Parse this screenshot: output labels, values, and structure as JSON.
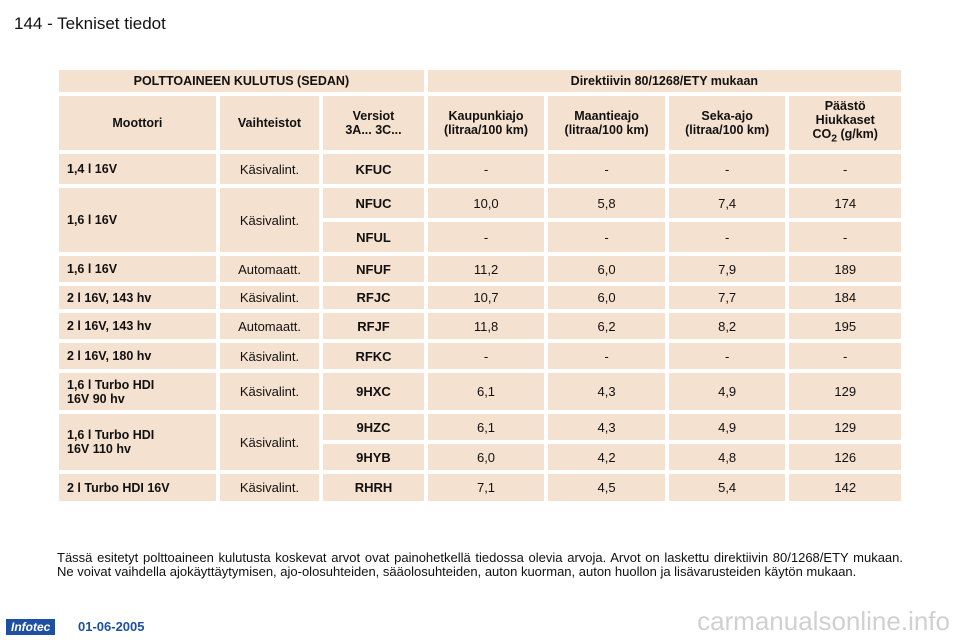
{
  "page": {
    "title": "144 - Tekniset tiedot"
  },
  "table": {
    "header_left": "POLTTOAINEEN KULUTUS (SEDAN)",
    "header_right": "Direktiivin 80/1268/ETY mukaan",
    "col_motor": "Moottori",
    "col_gearbox": "Vaihteistot",
    "col_version_1": "Versiot",
    "col_version_2": "3A... 3C...",
    "col_city_1": "Kaupunkiajo",
    "col_city_2": "(litraa/100 km)",
    "col_highway_1": "Maantieajo",
    "col_highway_2": "(litraa/100 km)",
    "col_mixed_1": "Seka-ajo",
    "col_mixed_2": "(litraa/100 km)",
    "col_co2_1": "Päästö",
    "col_co2_2": "Hiukkaset",
    "col_co2_3a": "CO",
    "col_co2_3sub": "2",
    "col_co2_3b": " (g/km)",
    "rows": [
      {
        "motor": "1,4 l 16V",
        "gearbox": "Käsivalint.",
        "version": "KFUC",
        "city": "-",
        "highway": "-",
        "mixed": "-",
        "co2": "-"
      },
      {
        "motor": "1,6 l 16V",
        "gearbox": "Käsivalint.",
        "version": "NFUC",
        "city": "10,0",
        "highway": "5,8",
        "mixed": "7,4",
        "co2": "174"
      },
      {
        "version": "NFUL",
        "city": "-",
        "highway": "-",
        "mixed": "-",
        "co2": "-"
      },
      {
        "motor": "1,6 l 16V",
        "gearbox": "Automaatt.",
        "version": "NFUF",
        "city": "11,2",
        "highway": "6,0",
        "mixed": "7,9",
        "co2": "189"
      },
      {
        "motor": "2 l 16V, 143 hv",
        "gearbox": "Käsivalint.",
        "version": "RFJC",
        "city": "10,7",
        "highway": "6,0",
        "mixed": "7,7",
        "co2": "184"
      },
      {
        "motor": "2 l 16V, 143 hv",
        "gearbox": "Automaatt.",
        "version": "RFJF",
        "city": "11,8",
        "highway": "6,2",
        "mixed": "8,2",
        "co2": "195"
      },
      {
        "motor": "2 l 16V, 180 hv",
        "gearbox": "Käsivalint.",
        "version": "RFKC",
        "city": "-",
        "highway": "-",
        "mixed": "-",
        "co2": "-"
      },
      {
        "motor_1": "1,6 l Turbo HDI",
        "motor_2": "16V 90 hv",
        "gearbox": "Käsivalint.",
        "version": "9HXC",
        "city": "6,1",
        "highway": "4,3",
        "mixed": "4,9",
        "co2": "129"
      },
      {
        "motor_1": "1,6 l Turbo HDI",
        "motor_2": "16V 110 hv",
        "gearbox": "Käsivalint.",
        "version": "9HZC",
        "city": "6,1",
        "highway": "4,3",
        "mixed": "4,9",
        "co2": "129"
      },
      {
        "version": "9HYB",
        "city": "6,0",
        "highway": "4,2",
        "mixed": "4,8",
        "co2": "126"
      },
      {
        "motor": "2 l Turbo HDI 16V",
        "gearbox": "Käsivalint.",
        "version": "RHRH",
        "city": "7,1",
        "highway": "4,5",
        "mixed": "5,4",
        "co2": "142"
      }
    ]
  },
  "footnote": "Tässä esitetyt polttoaineen kulutusta koskevat arvot ovat painohetkellä tiedossa olevia arvoja. Arvot on laskettu direktiivin 80/1268/ETY mukaan. Ne voivat vaihdella ajokäyttäytymisen, ajo-olosuhteiden, sääolosuhteiden, auton kuorman, auton huollon ja lisävarusteiden käytön mukaan.",
  "footer": {
    "logo": "Infotec",
    "date": "01-06-2005"
  },
  "watermark": "carmanualsonline.info"
}
